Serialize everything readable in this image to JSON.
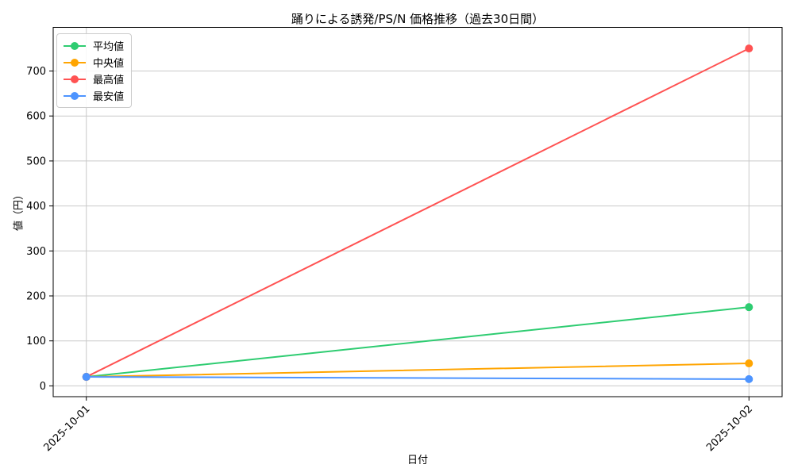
{
  "chart_data": {
    "type": "line",
    "title": "踊りによる誘発/PS/N 価格推移（過去30日間）",
    "xlabel": "日付",
    "ylabel": "値（円）",
    "x_categories": [
      "2025-10-01",
      "2025-10-02"
    ],
    "series": [
      {
        "name": "平均値",
        "color": "#2ecc71",
        "values": [
          20,
          175
        ]
      },
      {
        "name": "中央値",
        "color": "#ffa502",
        "values": [
          20,
          50
        ]
      },
      {
        "name": "最高値",
        "color": "#ff5252",
        "values": [
          20,
          750
        ]
      },
      {
        "name": "最安値",
        "color": "#4d94ff",
        "values": [
          20,
          15
        ]
      }
    ],
    "yticks": [
      0,
      100,
      200,
      300,
      400,
      500,
      600,
      700
    ],
    "ylim": [
      -24,
      797
    ],
    "xlim": [
      -0.05,
      1.05
    ],
    "grid": true,
    "grid_color": "#c9c9c9",
    "spine_color": "#000000",
    "legend_position": "upper-left",
    "marker": "circle",
    "x_tick_rotation": 45
  }
}
